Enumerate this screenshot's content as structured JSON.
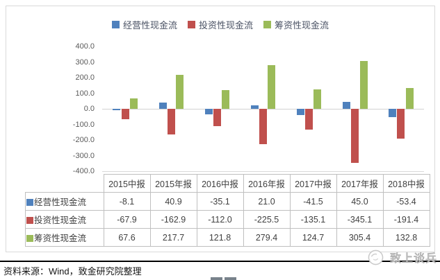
{
  "chart_data": {
    "type": "bar",
    "title": "",
    "categories": [
      "2015中报",
      "2015年报",
      "2016中报",
      "2016年报",
      "2017中报",
      "2017年报",
      "2018中报"
    ],
    "series": [
      {
        "name": "经营性现金流",
        "color": "#4F81BD",
        "values": [
          -8.1,
          40.9,
          -35.1,
          21.0,
          -41.5,
          45.0,
          -53.4
        ]
      },
      {
        "name": "投资性现金流",
        "color": "#C0504D",
        "values": [
          -67.9,
          -162.9,
          -112.0,
          -225.5,
          -135.1,
          -345.1,
          -191.4
        ]
      },
      {
        "name": "筹资性现金流",
        "color": "#9BBB59",
        "values": [
          67.6,
          217.7,
          121.8,
          279.4,
          124.7,
          305.4,
          132.8
        ]
      }
    ],
    "ylim": [
      -400,
      400
    ],
    "ytick_step": 100,
    "y_tick_labels": [
      "400.0",
      "300.0",
      "200.0",
      "100.0",
      "0.0",
      "-100.0",
      "-200.0",
      "-300.0",
      "-400.0"
    ],
    "legend_position": "top-center",
    "grid": false,
    "zero_line": true,
    "data_table_shown": true
  },
  "colors": {
    "series_blue": "#4F81BD",
    "series_red": "#C0504D",
    "series_green": "#9BBB59",
    "axis_text": "#595959",
    "table_border": "#BFBFBF",
    "card_border": "#D9D9D9"
  },
  "footer": {
    "source": "资料来源：Wind，致金研究院整理",
    "watermark": "致上谈兵"
  }
}
